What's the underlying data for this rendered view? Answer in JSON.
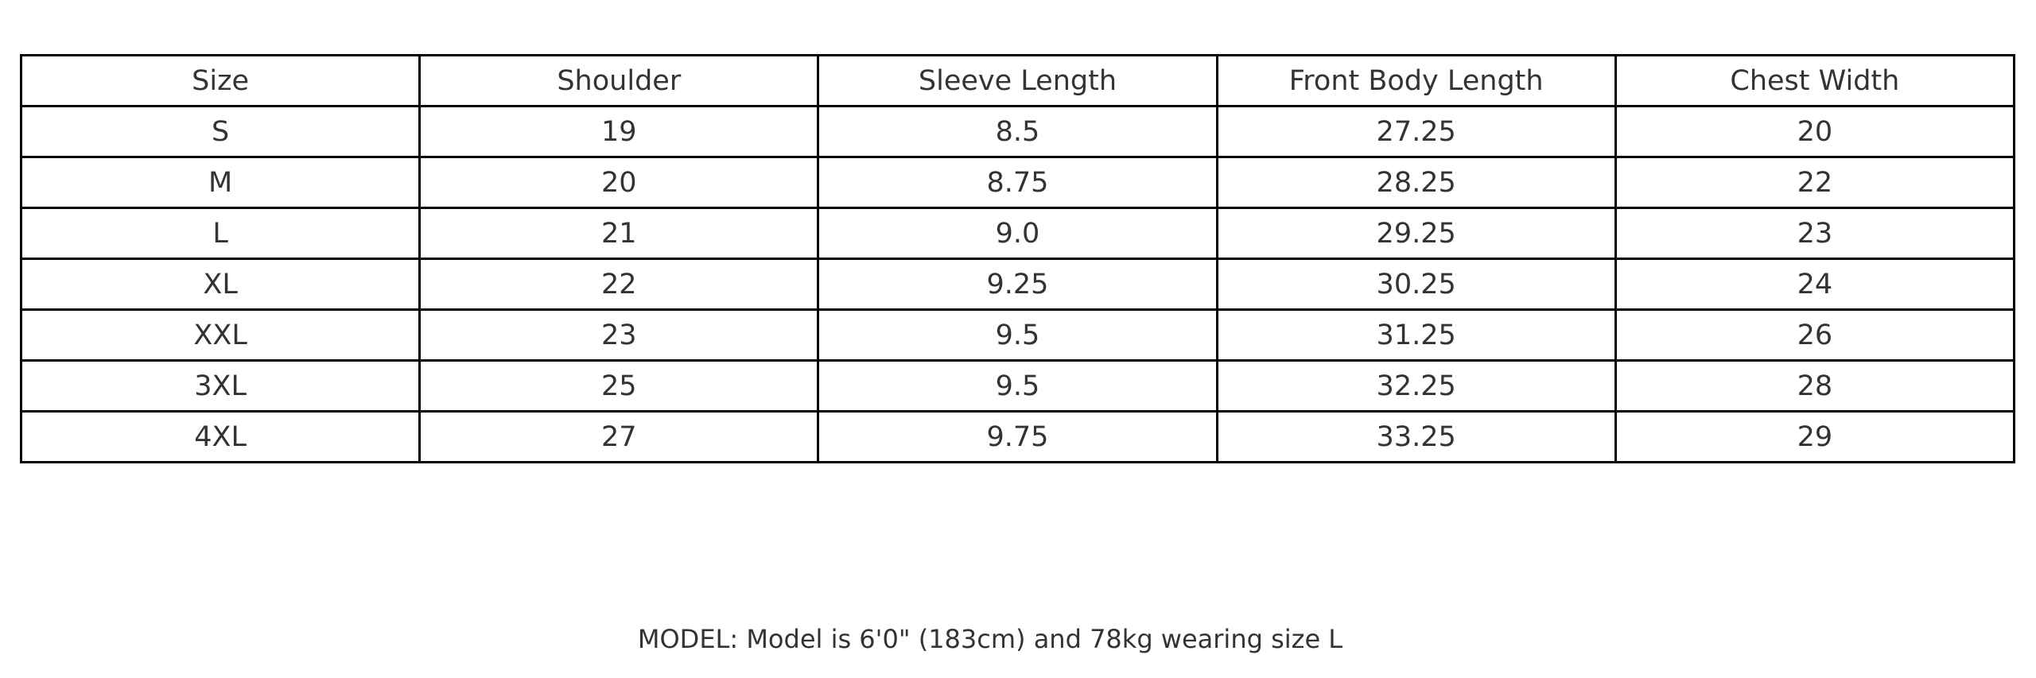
{
  "table": {
    "headers": [
      "Size",
      "Shoulder",
      "Sleeve Length",
      "Front Body Length",
      "Chest Width"
    ],
    "rows": [
      [
        "S",
        "19",
        "8.5",
        "27.25",
        "20"
      ],
      [
        "M",
        "20",
        "8.75",
        "28.25",
        "22"
      ],
      [
        "L",
        "21",
        "9.0",
        "29.25",
        "23"
      ],
      [
        "XL",
        "22",
        "9.25",
        "30.25",
        "24"
      ],
      [
        "XXL",
        "23",
        "9.5",
        "31.25",
        "26"
      ],
      [
        "3XL",
        "25",
        "9.5",
        "32.25",
        "28"
      ],
      [
        "4XL",
        "27",
        "9.75",
        "33.25",
        "29"
      ]
    ]
  },
  "model_note": "MODEL: Model is 6'0\" (183cm) and 78kg wearing size L"
}
